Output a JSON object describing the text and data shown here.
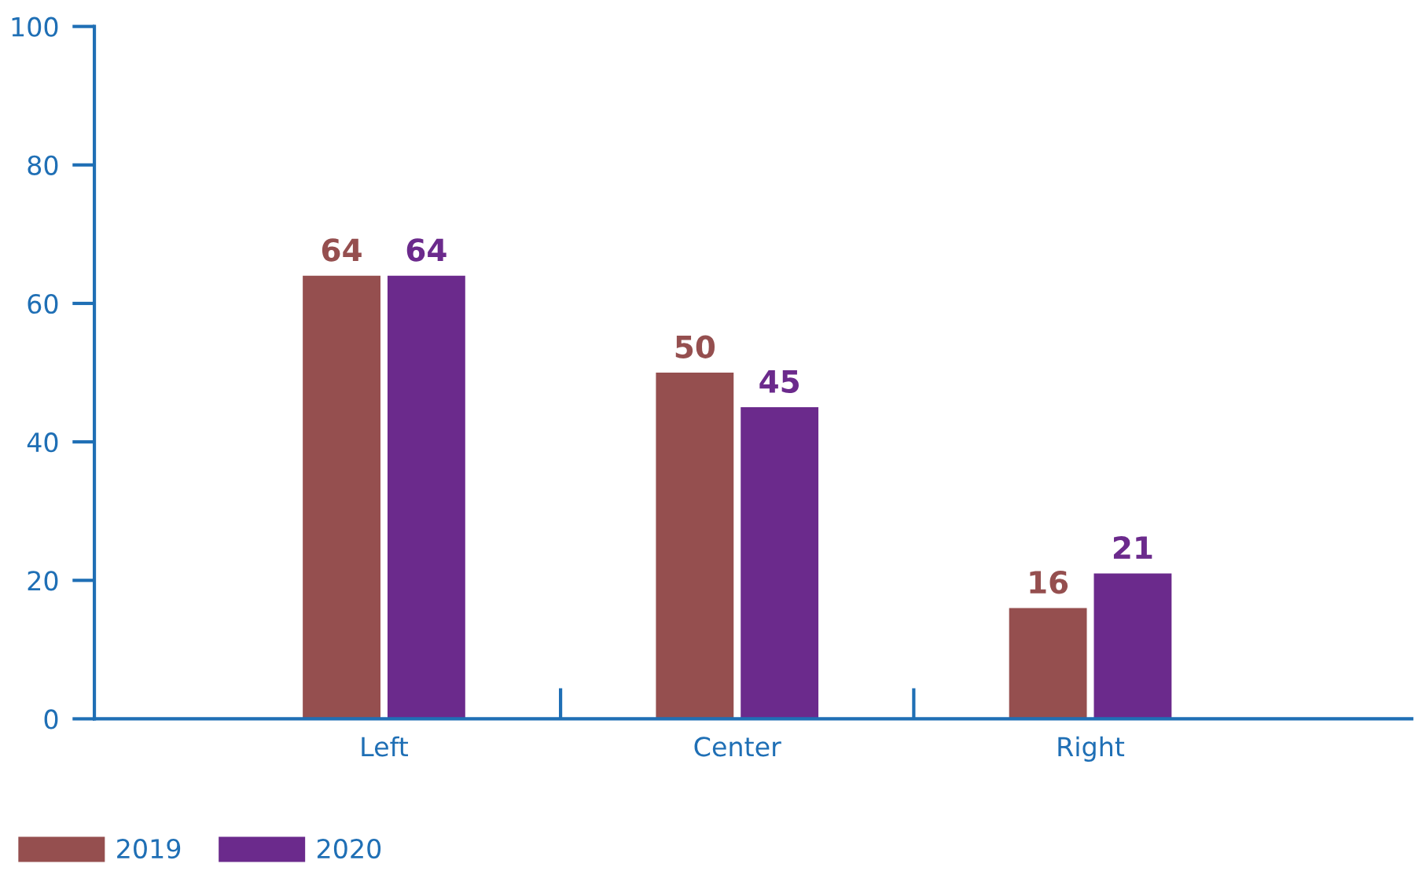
{
  "chart_data": {
    "type": "bar",
    "categories": [
      "Left",
      "Center",
      "Right"
    ],
    "series": [
      {
        "name": "2019",
        "color": "#954f4f",
        "values": [
          64,
          50,
          16
        ]
      },
      {
        "name": "2020",
        "color": "#6b2a8c",
        "values": [
          64,
          45,
          21
        ]
      }
    ],
    "ylim": [
      0,
      100
    ],
    "yticks": [
      0,
      20,
      40,
      60,
      80,
      100
    ],
    "data_labels": true,
    "legend": "bottom left",
    "grid": false
  }
}
